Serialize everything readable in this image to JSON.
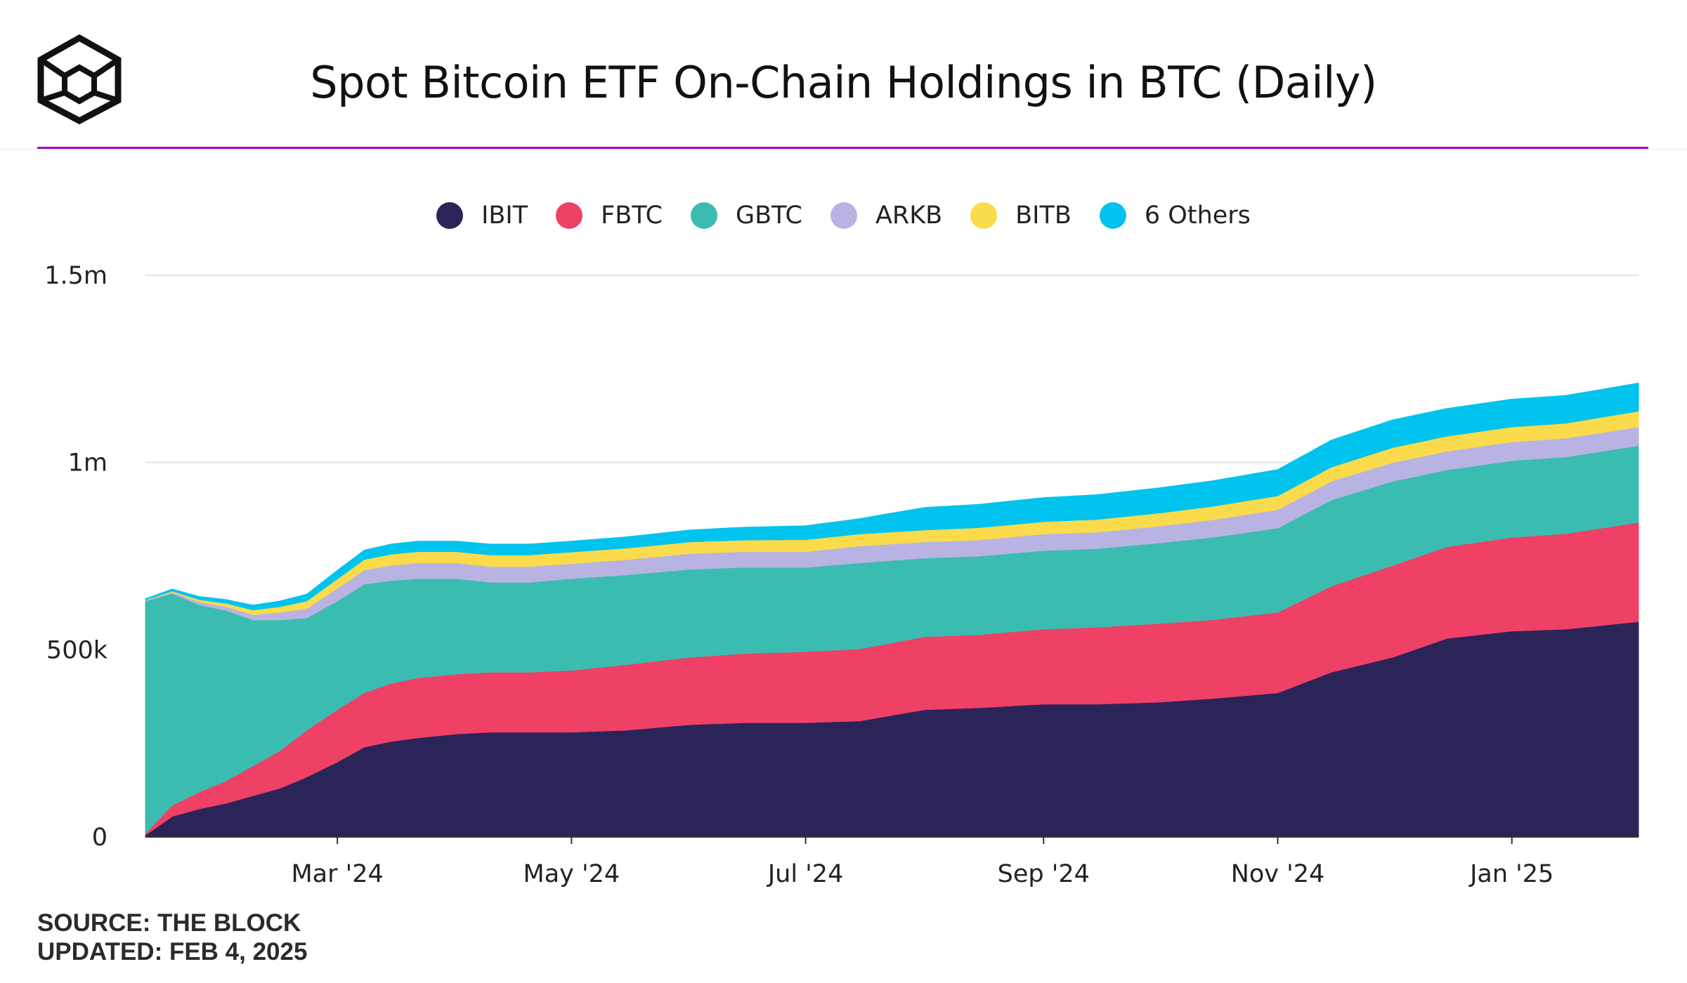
{
  "header": {
    "title": "Spot Bitcoin ETF On-Chain Holdings in BTC (Daily)"
  },
  "colors": {
    "accent_line": "#a100c7",
    "IBIT": "#2b2459",
    "FBTC": "#ef4066",
    "GBTC": "#3bbcb1",
    "ARKB": "#b8b3e2",
    "BITB": "#fadb4b",
    "Others": "#00c3ee"
  },
  "legend": [
    {
      "label": "IBIT",
      "color": "#2b2459"
    },
    {
      "label": "FBTC",
      "color": "#ef4066"
    },
    {
      "label": "GBTC",
      "color": "#3bbcb1"
    },
    {
      "label": "ARKB",
      "color": "#b8b3e2"
    },
    {
      "label": "BITB",
      "color": "#fadb4b"
    },
    {
      "label": "6 Others",
      "color": "#00c3ee"
    }
  ],
  "chart_data": {
    "type": "area",
    "stacked": true,
    "title": "Spot Bitcoin ETF On-Chain Holdings in BTC (Daily)",
    "xlabel": "",
    "ylabel": "",
    "ylim": [
      0,
      1500000
    ],
    "y_ticks": [
      {
        "value": 0,
        "label": "0"
      },
      {
        "value": 500000,
        "label": "500k"
      },
      {
        "value": 1000000,
        "label": "1m"
      },
      {
        "value": 1500000,
        "label": "1.5m"
      }
    ],
    "x_range": [
      "2024-01-11",
      "2025-02-03"
    ],
    "x_ticks": [
      {
        "date": "2024-03-01",
        "label": "Mar '24"
      },
      {
        "date": "2024-05-01",
        "label": "May '24"
      },
      {
        "date": "2024-07-01",
        "label": "Jul '24"
      },
      {
        "date": "2024-09-01",
        "label": "Sep '24"
      },
      {
        "date": "2024-11-01",
        "label": "Nov '24"
      },
      {
        "date": "2025-01-01",
        "label": "Jan '25"
      }
    ],
    "grid": "horizontal",
    "legend_position": "top",
    "x": [
      "2024-01-11",
      "2024-01-18",
      "2024-01-25",
      "2024-02-01",
      "2024-02-08",
      "2024-02-15",
      "2024-02-22",
      "2024-03-01",
      "2024-03-08",
      "2024-03-15",
      "2024-03-22",
      "2024-04-01",
      "2024-04-10",
      "2024-04-20",
      "2024-05-01",
      "2024-05-15",
      "2024-06-01",
      "2024-06-15",
      "2024-07-01",
      "2024-07-15",
      "2024-08-01",
      "2024-08-15",
      "2024-09-01",
      "2024-09-15",
      "2024-10-01",
      "2024-10-15",
      "2024-11-01",
      "2024-11-15",
      "2024-12-01",
      "2024-12-15",
      "2025-01-01",
      "2025-01-15",
      "2025-02-03"
    ],
    "series": [
      {
        "name": "IBIT",
        "values": [
          5000,
          55000,
          75000,
          90000,
          110000,
          130000,
          160000,
          200000,
          240000,
          255000,
          265000,
          275000,
          280000,
          280000,
          280000,
          285000,
          300000,
          305000,
          305000,
          310000,
          340000,
          345000,
          355000,
          355000,
          360000,
          370000,
          385000,
          440000,
          480000,
          530000,
          550000,
          555000,
          575000
        ]
      },
      {
        "name": "FBTC",
        "values": [
          5000,
          30000,
          45000,
          60000,
          80000,
          100000,
          125000,
          140000,
          145000,
          155000,
          160000,
          160000,
          160000,
          160000,
          165000,
          175000,
          180000,
          185000,
          190000,
          192000,
          195000,
          195000,
          200000,
          205000,
          210000,
          210000,
          215000,
          230000,
          245000,
          245000,
          250000,
          255000,
          265000
        ]
      },
      {
        "name": "GBTC",
        "values": [
          620000,
          565000,
          500000,
          455000,
          390000,
          350000,
          300000,
          290000,
          290000,
          275000,
          265000,
          255000,
          240000,
          240000,
          245000,
          240000,
          235000,
          230000,
          225000,
          230000,
          210000,
          210000,
          210000,
          210000,
          215000,
          220000,
          225000,
          230000,
          225000,
          205000,
          205000,
          205000,
          205000
        ]
      },
      {
        "name": "ARKB",
        "values": [
          2000,
          4000,
          8000,
          10000,
          14000,
          20000,
          25000,
          34000,
          38000,
          40000,
          42000,
          42000,
          42000,
          42000,
          40000,
          40000,
          42000,
          42000,
          42000,
          45000,
          43000,
          43000,
          44000,
          44000,
          45000,
          47000,
          49000,
          50000,
          50000,
          50000,
          50000,
          50000,
          50000
        ]
      },
      {
        "name": "BITB",
        "values": [
          1000,
          3000,
          6000,
          9000,
          12000,
          15000,
          20000,
          25000,
          28000,
          30000,
          30000,
          30000,
          31000,
          31000,
          31000,
          31000,
          31000,
          31000,
          32000,
          32000,
          32000,
          33000,
          33000,
          34000,
          35000,
          36000,
          37000,
          38000,
          40000,
          40000,
          40000,
          40000,
          42000
        ]
      },
      {
        "name": "6 Others",
        "values": [
          3000,
          5000,
          8000,
          10000,
          13000,
          15000,
          18000,
          23000,
          25000,
          27000,
          28000,
          28000,
          29000,
          29000,
          29000,
          30000,
          32000,
          34000,
          37000,
          41000,
          60000,
          62000,
          64000,
          66000,
          67000,
          68000,
          70000,
          72000,
          74000,
          74000,
          74000,
          74000,
          75000
        ]
      }
    ]
  },
  "footer": {
    "source": "SOURCE: THE BLOCK",
    "updated": "UPDATED: FEB 4, 2025"
  }
}
